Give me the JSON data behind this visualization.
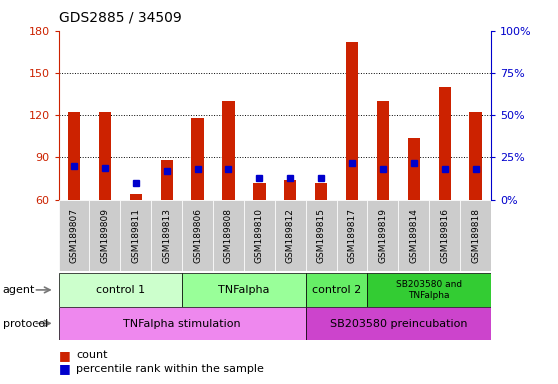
{
  "title": "GDS2885 / 34509",
  "samples": [
    "GSM189807",
    "GSM189809",
    "GSM189811",
    "GSM189813",
    "GSM189806",
    "GSM189808",
    "GSM189810",
    "GSM189812",
    "GSM189815",
    "GSM189817",
    "GSM189819",
    "GSM189814",
    "GSM189816",
    "GSM189818"
  ],
  "count_values": [
    122,
    122,
    64,
    88,
    118,
    130,
    72,
    74,
    72,
    172,
    130,
    104,
    140,
    122
  ],
  "percentile_values": [
    20,
    19,
    10,
    17,
    18,
    18,
    13,
    13,
    13,
    22,
    18,
    22,
    18,
    18
  ],
  "ylim_left": [
    60,
    180
  ],
  "yticks_left": [
    60,
    90,
    120,
    150,
    180
  ],
  "ylim_right": [
    0,
    100
  ],
  "yticks_right": [
    0,
    25,
    50,
    75,
    100
  ],
  "ytick_labels_right": [
    "0%",
    "25%",
    "50%",
    "75%",
    "100%"
  ],
  "bar_color": "#cc2200",
  "percentile_color": "#0000cc",
  "grid_color": "#000000",
  "bg_color": "#ffffff",
  "sample_box_color": "#cccccc",
  "agent_labels": [
    "control 1",
    "TNFalpha",
    "control 2",
    "SB203580 and\nTNFalpha"
  ],
  "agent_ranges": [
    [
      0,
      3
    ],
    [
      4,
      7
    ],
    [
      8,
      9
    ],
    [
      10,
      13
    ]
  ],
  "agent_colors": [
    "#ccffcc",
    "#99ff99",
    "#66ee66",
    "#33cc33"
  ],
  "protocol_labels": [
    "TNFalpha stimulation",
    "SB203580 preincubation"
  ],
  "protocol_ranges": [
    [
      0,
      7
    ],
    [
      8,
      13
    ]
  ],
  "protocol_colors": [
    "#ee88ee",
    "#cc44cc"
  ],
  "legend_count_color": "#cc2200",
  "legend_pct_color": "#0000cc",
  "left_tick_color": "#cc2200",
  "right_tick_color": "#0000cc",
  "title_fontsize": 10,
  "tick_fontsize": 7,
  "sample_fontsize": 6.5,
  "group_fontsize": 8,
  "legend_fontsize": 8,
  "bar_width": 0.4
}
